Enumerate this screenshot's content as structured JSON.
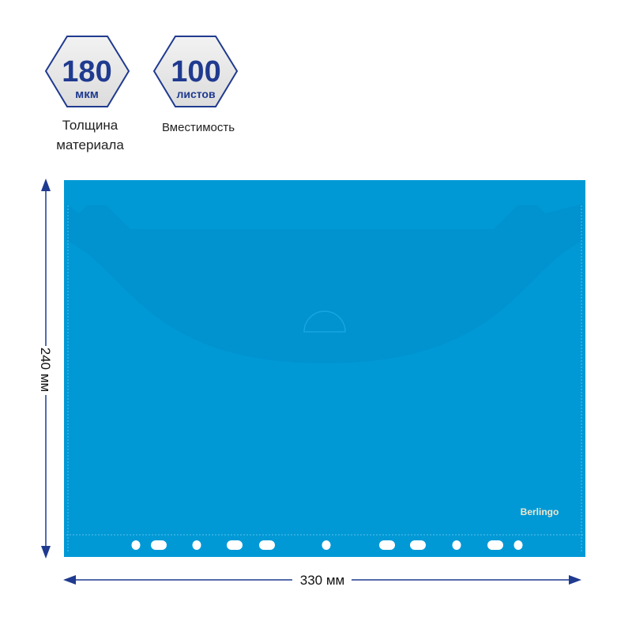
{
  "badges": [
    {
      "value": "180",
      "unit": "мкм",
      "caption_line1": "Толщина",
      "caption_line2": "материала"
    },
    {
      "value": "100",
      "unit": "листов",
      "caption_line1": "Вместимость",
      "caption_line2": ""
    }
  ],
  "product": {
    "brand": "Berlingo",
    "color": "#0099d6",
    "flap_color": "#0093d0",
    "hole_count": 11
  },
  "dimensions": {
    "height_label": "240 мм",
    "width_label": "330 мм",
    "arrow_color": "#1f3a8f"
  }
}
